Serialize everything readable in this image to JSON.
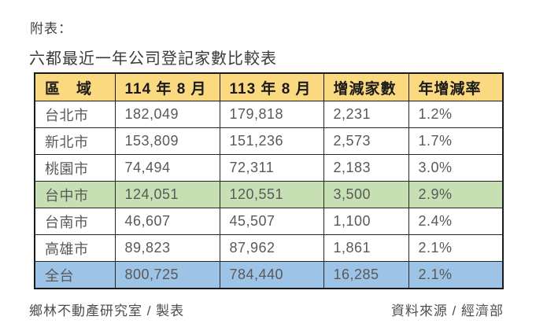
{
  "page": {
    "pre_title": "附表：",
    "title": "六都最近一年公司登記家數比較表"
  },
  "table": {
    "headers": [
      "區　域",
      "114 年 8 月",
      "113 年 8 月",
      "增減家數",
      "年增減率"
    ],
    "rows": [
      {
        "region": "台北市",
        "y114": "182,049",
        "y113": "179,818",
        "change": "2,231",
        "rate": "1.2%",
        "highlight": ""
      },
      {
        "region": "新北市",
        "y114": "153,809",
        "y113": "151,236",
        "change": "2,573",
        "rate": "1.7%",
        "highlight": ""
      },
      {
        "region": "桃園市",
        "y114": "74,494",
        "y113": "72,311",
        "change": "2,183",
        "rate": "3.0%",
        "highlight": ""
      },
      {
        "region": "台中市",
        "y114": "124,051",
        "y113": "120,551",
        "change": "3,500",
        "rate": "2.9%",
        "highlight": "green"
      },
      {
        "region": "台南市",
        "y114": "46,607",
        "y113": "45,507",
        "change": "1,100",
        "rate": "2.4%",
        "highlight": ""
      },
      {
        "region": "高雄市",
        "y114": "89,823",
        "y113": "87,962",
        "change": "1,861",
        "rate": "2.1%",
        "highlight": ""
      },
      {
        "region": "全台",
        "y114": "800,725",
        "y113": "784,440",
        "change": "16,285",
        "rate": "2.1%",
        "highlight": "blue"
      }
    ]
  },
  "footer": {
    "left": "鄉林不動產研究室 / 製表",
    "right": "資料來源 / 經濟部"
  },
  "colors": {
    "header_bg": "#FBD980",
    "green_bg": "#C6E0B4",
    "blue_bg": "#9DC3E6"
  },
  "chart_data": {
    "type": "table",
    "title": "六都最近一年公司登記家數比較表",
    "columns": [
      "區域",
      "114 年 8 月",
      "113 年 8 月",
      "增減家數",
      "年增減率"
    ],
    "rows": [
      [
        "台北市",
        182049,
        179818,
        2231,
        "1.2%"
      ],
      [
        "新北市",
        153809,
        151236,
        2573,
        "1.7%"
      ],
      [
        "桃園市",
        74494,
        72311,
        2183,
        "3.0%"
      ],
      [
        "台中市",
        124051,
        120551,
        3500,
        "2.9%"
      ],
      [
        "台南市",
        46607,
        45507,
        1100,
        "2.4%"
      ],
      [
        "高雄市",
        89823,
        87962,
        1861,
        "2.1%"
      ],
      [
        "全台",
        800725,
        784440,
        16285,
        "2.1%"
      ]
    ]
  }
}
